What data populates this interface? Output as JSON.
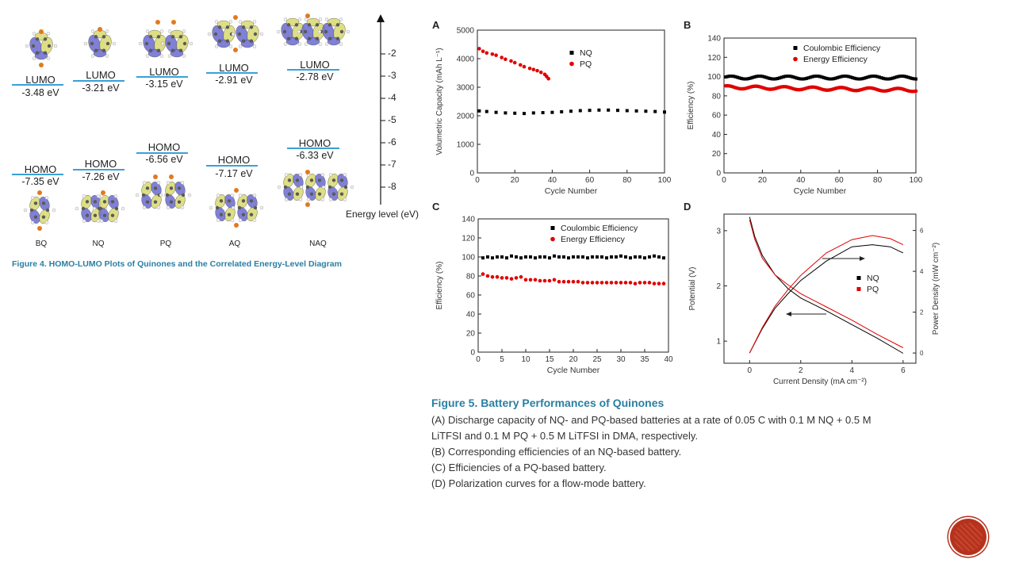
{
  "figure4": {
    "caption": "Figure 4.  HOMO-LUMO Plots of Quinones and the Correlated Energy-Level Diagram",
    "axis_label": "Energy level (eV)",
    "axis_ticks": [
      "-2",
      "-3",
      "-4",
      "-5",
      "-6",
      "-7",
      "-8"
    ],
    "molecules": [
      {
        "name": "BQ",
        "lumo_label": "LUMO",
        "lumo_energy": "-3.48 eV",
        "homo_label": "HOMO",
        "homo_energy": "-7.35 eV"
      },
      {
        "name": "NQ",
        "lumo_label": "LUMO",
        "lumo_energy": "-3.21 eV",
        "homo_label": "HOMO",
        "homo_energy": "-7.26 eV"
      },
      {
        "name": "PQ",
        "lumo_label": "LUMO",
        "lumo_energy": "-3.15 eV",
        "homo_label": "HOMO",
        "homo_energy": "-6.56 eV"
      },
      {
        "name": "AQ",
        "lumo_label": "LUMO",
        "lumo_energy": "-2.91 eV",
        "homo_label": "HOMO",
        "homo_energy": "-7.17 eV"
      },
      {
        "name": "NAQ",
        "lumo_label": "LUMO",
        "lumo_energy": "-2.78 eV",
        "homo_label": "HOMO",
        "homo_energy": "-6.33 eV"
      }
    ],
    "colors": {
      "level_line": "#3aa0d8",
      "caption": "#2a7fa3",
      "orbital_pos": "#6a6ad0",
      "orbital_neg": "#d8d870"
    }
  },
  "figure5": {
    "title": "Figure 5.  Battery Performances of Quinones",
    "lines": [
      "(A) Discharge capacity of NQ- and PQ-based batteries at a rate of 0.05 C with 0.1 M NQ + 0.5 M",
      "LiTFSI and 0.1 M PQ + 0.5 M LiTFSI in DMA, respectively.",
      "(B) Corresponding efficiencies of an NQ-based battery.",
      "(C) Efficiencies of a PQ-based battery.",
      "(D) Polarization curves for a flow-mode battery."
    ],
    "panel_letters": [
      "A",
      "B",
      "C",
      "D"
    ]
  },
  "chart_data": [
    {
      "id": "A",
      "type": "scatter",
      "xlabel": "Cycle Number",
      "ylabel": "Volumetric Capacity (mAh L⁻¹)",
      "xlim": [
        0,
        100
      ],
      "ylim": [
        0,
        5000
      ],
      "xticks": [
        "0",
        "20",
        "40",
        "60",
        "80",
        "100"
      ],
      "yticks": [
        "0",
        "1000",
        "2000",
        "3000",
        "4000",
        "5000"
      ],
      "legend_position": "top-right",
      "series": [
        {
          "name": "NQ",
          "color": "#000000",
          "marker": "square",
          "x": [
            1,
            5,
            10,
            15,
            20,
            25,
            30,
            35,
            40,
            45,
            50,
            55,
            60,
            65,
            70,
            75,
            80,
            85,
            90,
            95,
            100
          ],
          "y": [
            2170,
            2150,
            2120,
            2100,
            2090,
            2080,
            2100,
            2110,
            2120,
            2140,
            2160,
            2180,
            2190,
            2200,
            2200,
            2190,
            2180,
            2170,
            2160,
            2150,
            2130
          ]
        },
        {
          "name": "PQ",
          "color": "#e00000",
          "marker": "circle",
          "x": [
            1,
            3,
            5,
            8,
            10,
            13,
            15,
            18,
            20,
            23,
            25,
            28,
            30,
            32,
            34,
            36,
            37,
            38
          ],
          "y": [
            4350,
            4260,
            4200,
            4160,
            4120,
            4040,
            3980,
            3920,
            3860,
            3780,
            3720,
            3660,
            3620,
            3580,
            3520,
            3450,
            3380,
            3300
          ]
        }
      ]
    },
    {
      "id": "B",
      "type": "scatter",
      "xlabel": "Cycle Number",
      "ylabel": "Efficiency (%)",
      "xlim": [
        0,
        100
      ],
      "ylim": [
        0,
        140
      ],
      "xticks": [
        "0",
        "20",
        "40",
        "60",
        "80",
        "100"
      ],
      "yticks": [
        "0",
        "20",
        "40",
        "60",
        "80",
        "100",
        "120",
        "140"
      ],
      "legend_position": "top-right",
      "series": [
        {
          "name": "Coulombic Efficiency",
          "color": "#000000",
          "marker": "square",
          "x_range": [
            1,
            100
          ],
          "y_mean": 99,
          "y_jitter": 1.5
        },
        {
          "name": "Energy Efficiency",
          "color": "#e00000",
          "marker": "circle",
          "x_range": [
            1,
            100
          ],
          "y_start": 89,
          "y_end": 86,
          "y_jitter": 1.5
        }
      ]
    },
    {
      "id": "C",
      "type": "scatter",
      "xlabel": "Cycle Number",
      "ylabel": "Efficiency (%)",
      "xlim": [
        0,
        40
      ],
      "ylim": [
        0,
        140
      ],
      "xticks": [
        "0",
        "5",
        "10",
        "15",
        "20",
        "25",
        "30",
        "35",
        "40"
      ],
      "yticks": [
        "0",
        "20",
        "40",
        "60",
        "80",
        "100",
        "120",
        "140"
      ],
      "legend_position": "top-right",
      "series": [
        {
          "name": "Coulombic Efficiency",
          "color": "#000000",
          "marker": "square",
          "x": [
            1,
            2,
            3,
            4,
            5,
            6,
            7,
            8,
            9,
            10,
            11,
            12,
            13,
            14,
            15,
            16,
            17,
            18,
            19,
            20,
            21,
            22,
            23,
            24,
            25,
            26,
            27,
            28,
            29,
            30,
            31,
            32,
            33,
            34,
            35,
            36,
            37,
            38,
            39
          ],
          "y": [
            99,
            100,
            99,
            100,
            100,
            99,
            101,
            100,
            99,
            100,
            100,
            99,
            100,
            100,
            99,
            101,
            100,
            100,
            99,
            100,
            100,
            100,
            99,
            100,
            100,
            100,
            99,
            100,
            100,
            101,
            100,
            99,
            100,
            100,
            99,
            100,
            101,
            100,
            99
          ]
        },
        {
          "name": "Energy Efficiency",
          "color": "#e00000",
          "marker": "circle",
          "x": [
            1,
            2,
            3,
            4,
            5,
            6,
            7,
            8,
            9,
            10,
            11,
            12,
            13,
            14,
            15,
            16,
            17,
            18,
            19,
            20,
            21,
            22,
            23,
            24,
            25,
            26,
            27,
            28,
            29,
            30,
            31,
            32,
            33,
            34,
            35,
            36,
            37,
            38,
            39
          ],
          "y": [
            82,
            80,
            79,
            79,
            78,
            78,
            77,
            78,
            79,
            76,
            76,
            76,
            75,
            75,
            75,
            76,
            74,
            74,
            74,
            74,
            74,
            73,
            73,
            73,
            73,
            73,
            73,
            73,
            73,
            73,
            73,
            73,
            72,
            73,
            73,
            73,
            72,
            72,
            72
          ]
        }
      ]
    },
    {
      "id": "D",
      "type": "line",
      "xlabel": "Current Density (mA cm⁻²)",
      "ylabel": "Potential (V)",
      "y2label": "Power Density (mW cm⁻²)",
      "xlim": [
        -1,
        6.5
      ],
      "ylim": [
        0.6,
        3.3
      ],
      "y2lim": [
        -0.5,
        6.8
      ],
      "xticks": [
        "0",
        "2",
        "4",
        "6"
      ],
      "yticks": [
        "1",
        "2",
        "3"
      ],
      "y2ticks": [
        "0",
        "2",
        "4",
        "6"
      ],
      "legend_position": "center-right",
      "series": [
        {
          "name": "NQ",
          "color": "#000000",
          "axis": "left",
          "x": [
            0,
            0.2,
            0.5,
            1,
            1.5,
            2,
            3,
            4,
            5,
            6
          ],
          "y": [
            3.25,
            2.9,
            2.55,
            2.2,
            1.95,
            1.78,
            1.55,
            1.3,
            1.05,
            0.78
          ]
        },
        {
          "name": "PQ",
          "color": "#e00000",
          "axis": "left",
          "x": [
            0,
            0.2,
            0.5,
            1,
            1.5,
            2,
            3,
            4,
            5,
            6
          ],
          "y": [
            3.2,
            2.85,
            2.5,
            2.2,
            2.02,
            1.86,
            1.62,
            1.38,
            1.12,
            0.88
          ]
        },
        {
          "name": "NQ",
          "color": "#000000",
          "axis": "right",
          "x": [
            0,
            0.5,
            1,
            1.5,
            2,
            3,
            4,
            4.8,
            5.5,
            6
          ],
          "y": [
            0,
            1.2,
            2.2,
            2.9,
            3.55,
            4.5,
            5.2,
            5.3,
            5.2,
            4.9
          ]
        },
        {
          "name": "PQ",
          "color": "#e00000",
          "axis": "right",
          "x": [
            0,
            0.5,
            1,
            1.5,
            2,
            3,
            4,
            4.8,
            5.5,
            6
          ],
          "y": [
            0,
            1.25,
            2.3,
            3.1,
            3.8,
            4.9,
            5.55,
            5.75,
            5.6,
            5.3
          ]
        }
      ]
    }
  ]
}
